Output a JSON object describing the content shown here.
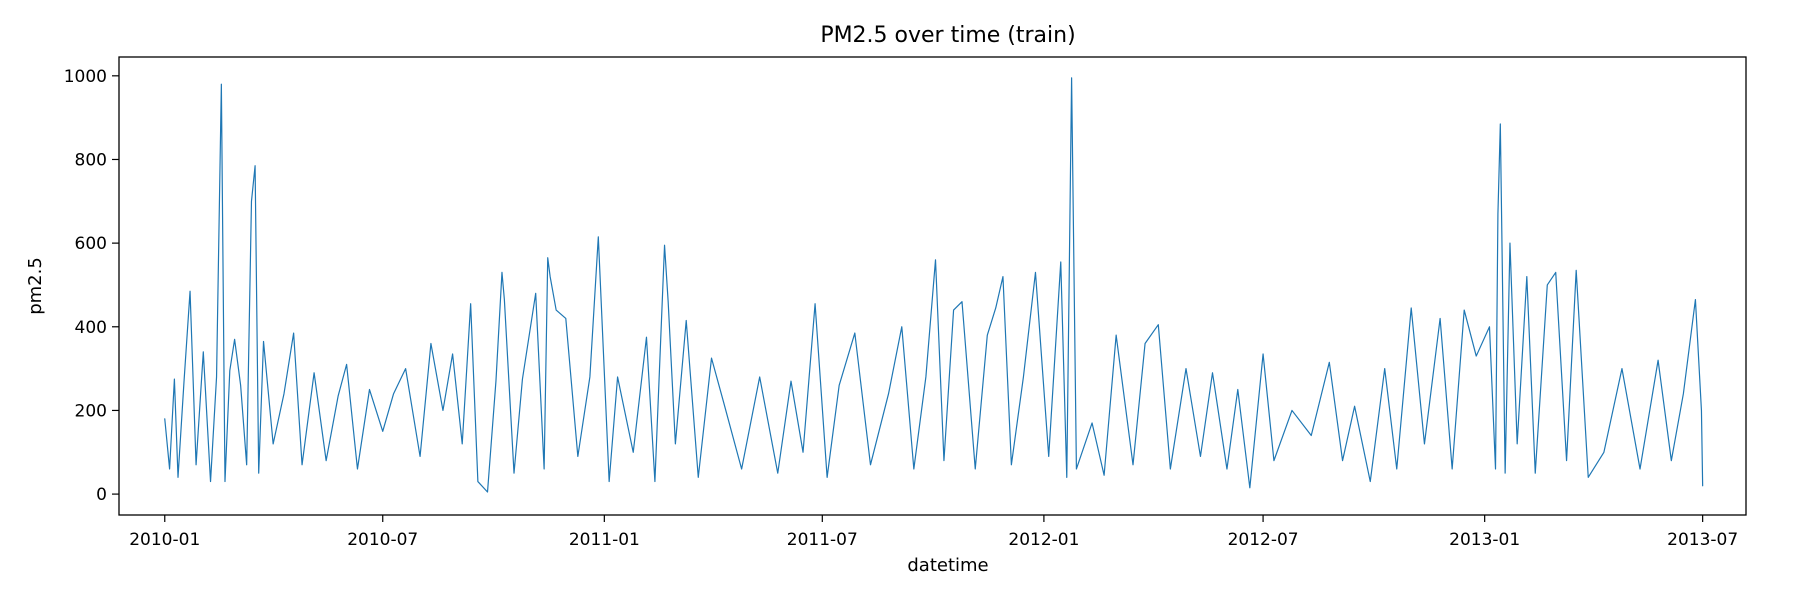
{
  "chart_data": {
    "type": "line",
    "title": "PM2.5 over time (train)",
    "xlabel": "datetime",
    "ylabel": "pm2.5",
    "x_range": [
      "2009-11-24",
      "2013-08-06"
    ],
    "ylim": [
      -50,
      1045
    ],
    "x_ticks": [
      {
        "date": "2010-01-01",
        "label": "2010-01"
      },
      {
        "date": "2010-07-01",
        "label": "2010-07"
      },
      {
        "date": "2011-01-01",
        "label": "2011-01"
      },
      {
        "date": "2011-07-01",
        "label": "2011-07"
      },
      {
        "date": "2012-01-01",
        "label": "2012-01"
      },
      {
        "date": "2012-07-01",
        "label": "2012-07"
      },
      {
        "date": "2013-01-01",
        "label": "2013-01"
      },
      {
        "date": "2013-07-01",
        "label": "2013-07"
      }
    ],
    "y_ticks": [
      0,
      200,
      400,
      600,
      800,
      1000
    ],
    "grid": false,
    "series": [
      {
        "color": "#1f77b4",
        "points": [
          [
            "2010-01-01",
            180
          ],
          [
            "2010-01-05",
            60
          ],
          [
            "2010-01-09",
            275
          ],
          [
            "2010-01-12",
            40
          ],
          [
            "2010-01-17",
            270
          ],
          [
            "2010-01-22",
            485
          ],
          [
            "2010-01-27",
            70
          ],
          [
            "2010-02-02",
            340
          ],
          [
            "2010-02-08",
            30
          ],
          [
            "2010-02-13",
            280
          ],
          [
            "2010-02-17",
            980
          ],
          [
            "2010-02-20",
            30
          ],
          [
            "2010-02-24",
            295
          ],
          [
            "2010-02-28",
            370
          ],
          [
            "2010-03-05",
            260
          ],
          [
            "2010-03-10",
            70
          ],
          [
            "2010-03-14",
            700
          ],
          [
            "2010-03-17",
            785
          ],
          [
            "2010-03-20",
            50
          ],
          [
            "2010-03-24",
            365
          ],
          [
            "2010-04-01",
            120
          ],
          [
            "2010-04-10",
            240
          ],
          [
            "2010-04-18",
            385
          ],
          [
            "2010-04-25",
            70
          ],
          [
            "2010-05-05",
            290
          ],
          [
            "2010-05-15",
            80
          ],
          [
            "2010-05-25",
            235
          ],
          [
            "2010-06-01",
            310
          ],
          [
            "2010-06-10",
            60
          ],
          [
            "2010-06-20",
            250
          ],
          [
            "2010-07-01",
            150
          ],
          [
            "2010-07-10",
            240
          ],
          [
            "2010-07-20",
            300
          ],
          [
            "2010-08-01",
            90
          ],
          [
            "2010-08-10",
            360
          ],
          [
            "2010-08-20",
            200
          ],
          [
            "2010-08-28",
            335
          ],
          [
            "2010-09-05",
            120
          ],
          [
            "2010-09-12",
            455
          ],
          [
            "2010-09-18",
            30
          ],
          [
            "2010-09-26",
            5
          ],
          [
            "2010-10-03",
            270
          ],
          [
            "2010-10-08",
            530
          ],
          [
            "2010-10-10",
            465
          ],
          [
            "2010-10-18",
            50
          ],
          [
            "2010-10-25",
            275
          ],
          [
            "2010-11-05",
            480
          ],
          [
            "2010-11-12",
            60
          ],
          [
            "2010-11-15",
            565
          ],
          [
            "2010-11-17",
            520
          ],
          [
            "2010-11-22",
            440
          ],
          [
            "2010-11-30",
            420
          ],
          [
            "2010-12-10",
            90
          ],
          [
            "2010-12-20",
            280
          ],
          [
            "2010-12-27",
            615
          ],
          [
            "2011-01-05",
            30
          ],
          [
            "2011-01-12",
            280
          ],
          [
            "2011-01-25",
            100
          ],
          [
            "2011-02-05",
            375
          ],
          [
            "2011-02-12",
            30
          ],
          [
            "2011-02-20",
            595
          ],
          [
            "2011-02-23",
            460
          ],
          [
            "2011-03-01",
            120
          ],
          [
            "2011-03-10",
            415
          ],
          [
            "2011-03-20",
            40
          ],
          [
            "2011-03-31",
            325
          ],
          [
            "2011-04-10",
            220
          ],
          [
            "2011-04-25",
            60
          ],
          [
            "2011-05-10",
            280
          ],
          [
            "2011-05-25",
            50
          ],
          [
            "2011-06-05",
            270
          ],
          [
            "2011-06-15",
            100
          ],
          [
            "2011-06-25",
            455
          ],
          [
            "2011-07-05",
            40
          ],
          [
            "2011-07-15",
            260
          ],
          [
            "2011-07-28",
            385
          ],
          [
            "2011-08-10",
            70
          ],
          [
            "2011-08-25",
            240
          ],
          [
            "2011-09-05",
            400
          ],
          [
            "2011-09-15",
            60
          ],
          [
            "2011-09-25",
            280
          ],
          [
            "2011-10-03",
            560
          ],
          [
            "2011-10-10",
            80
          ],
          [
            "2011-10-18",
            440
          ],
          [
            "2011-10-25",
            460
          ],
          [
            "2011-11-05",
            60
          ],
          [
            "2011-11-15",
            380
          ],
          [
            "2011-11-22",
            445
          ],
          [
            "2011-11-28",
            520
          ],
          [
            "2011-12-05",
            70
          ],
          [
            "2011-12-15",
            280
          ],
          [
            "2011-12-25",
            530
          ],
          [
            "2012-01-05",
            90
          ],
          [
            "2012-01-15",
            555
          ],
          [
            "2012-01-20",
            40
          ],
          [
            "2012-01-24",
            995
          ],
          [
            "2012-01-28",
            60
          ],
          [
            "2012-02-10",
            170
          ],
          [
            "2012-02-20",
            45
          ],
          [
            "2012-03-01",
            380
          ],
          [
            "2012-03-15",
            70
          ],
          [
            "2012-03-25",
            360
          ],
          [
            "2012-04-05",
            405
          ],
          [
            "2012-04-15",
            60
          ],
          [
            "2012-04-28",
            300
          ],
          [
            "2012-05-10",
            90
          ],
          [
            "2012-05-20",
            290
          ],
          [
            "2012-06-01",
            60
          ],
          [
            "2012-06-10",
            250
          ],
          [
            "2012-06-20",
            15
          ],
          [
            "2012-07-01",
            335
          ],
          [
            "2012-07-10",
            80
          ],
          [
            "2012-07-25",
            200
          ],
          [
            "2012-08-10",
            140
          ],
          [
            "2012-08-25",
            315
          ],
          [
            "2012-09-05",
            80
          ],
          [
            "2012-09-15",
            210
          ],
          [
            "2012-09-28",
            30
          ],
          [
            "2012-10-10",
            300
          ],
          [
            "2012-10-20",
            60
          ],
          [
            "2012-11-01",
            445
          ],
          [
            "2012-11-12",
            120
          ],
          [
            "2012-11-25",
            420
          ],
          [
            "2012-12-05",
            60
          ],
          [
            "2012-12-15",
            440
          ],
          [
            "2012-12-25",
            330
          ],
          [
            "2013-01-05",
            400
          ],
          [
            "2013-01-10",
            60
          ],
          [
            "2013-01-12",
            670
          ],
          [
            "2013-01-14",
            885
          ],
          [
            "2013-01-18",
            50
          ],
          [
            "2013-01-22",
            600
          ],
          [
            "2013-01-28",
            120
          ],
          [
            "2013-02-05",
            520
          ],
          [
            "2013-02-12",
            50
          ],
          [
            "2013-02-22",
            500
          ],
          [
            "2013-03-01",
            530
          ],
          [
            "2013-03-10",
            80
          ],
          [
            "2013-03-18",
            535
          ],
          [
            "2013-03-28",
            40
          ],
          [
            "2013-04-10",
            100
          ],
          [
            "2013-04-25",
            300
          ],
          [
            "2013-05-10",
            60
          ],
          [
            "2013-05-25",
            320
          ],
          [
            "2013-06-05",
            80
          ],
          [
            "2013-06-15",
            240
          ],
          [
            "2013-06-25",
            465
          ],
          [
            "2013-06-30",
            200
          ],
          [
            "2013-07-01",
            20
          ]
        ]
      }
    ]
  }
}
